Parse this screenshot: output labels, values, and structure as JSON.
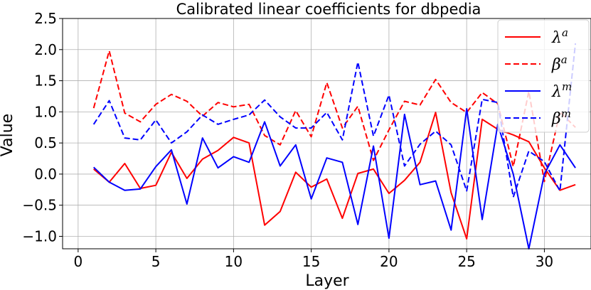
{
  "chart_data": {
    "type": "line",
    "title": "Calibrated linear coefficients for dbpedia",
    "xlabel": "Layer",
    "ylabel": "Value",
    "xlim": [
      -1,
      33
    ],
    "ylim": [
      -1.2,
      2.5
    ],
    "xticks": [
      "0",
      "5",
      "10",
      "15",
      "20",
      "25",
      "30"
    ],
    "yticks": [
      "−1.0",
      "−0.5",
      "0.0",
      "0.5",
      "1.0",
      "1.5",
      "2.0",
      "2.5"
    ],
    "grid": true,
    "legend_position": "top-right",
    "x": [
      1,
      2,
      3,
      4,
      5,
      6,
      7,
      8,
      9,
      10,
      11,
      12,
      13,
      14,
      15,
      16,
      17,
      18,
      19,
      20,
      21,
      22,
      23,
      24,
      25,
      26,
      27,
      28,
      29,
      30,
      31,
      32
    ],
    "series": [
      {
        "name": "λ^a",
        "base": "λ",
        "sup": "a",
        "color": "#ff0000",
        "dash": "solid",
        "values": [
          0.08,
          -0.13,
          0.17,
          -0.23,
          -0.18,
          0.35,
          -0.07,
          0.24,
          0.38,
          0.59,
          0.5,
          -0.82,
          -0.6,
          0.03,
          -0.21,
          -0.08,
          -0.71,
          0.01,
          0.08,
          -0.31,
          -0.1,
          0.19,
          0.99,
          -0.3,
          -1.04,
          0.88,
          0.72,
          0.63,
          0.52,
          0.1,
          -0.26,
          -0.17
        ]
      },
      {
        "name": "β^a",
        "base": "β",
        "sup": "a",
        "color": "#ff0000",
        "dash": "dashed",
        "values": [
          1.06,
          1.98,
          0.98,
          0.84,
          1.12,
          1.28,
          1.17,
          0.93,
          1.15,
          1.08,
          1.12,
          0.62,
          0.47,
          1.02,
          0.6,
          1.47,
          0.74,
          1.09,
          0.22,
          0.71,
          1.17,
          1.11,
          1.52,
          1.15,
          0.99,
          1.31,
          1.13,
          0.12,
          1.33,
          -0.12,
          1.0,
          0.75
        ]
      },
      {
        "name": "λ^m",
        "base": "λ",
        "sup": "m",
        "color": "#0000ff",
        "dash": "solid",
        "values": [
          0.11,
          -0.13,
          -0.26,
          -0.24,
          0.12,
          0.39,
          -0.48,
          0.58,
          0.1,
          0.28,
          0.19,
          0.84,
          0.13,
          0.47,
          -0.4,
          0.26,
          0.19,
          -0.81,
          0.45,
          -1.03,
          0.96,
          -0.17,
          -0.11,
          -0.9,
          1.05,
          -0.73,
          0.8,
          0.0,
          -1.2,
          0.0,
          0.47,
          0.1
        ]
      },
      {
        "name": "β^m",
        "base": "β",
        "sup": "m",
        "color": "#0000ff",
        "dash": "dashed",
        "values": [
          0.8,
          1.18,
          0.58,
          0.55,
          0.87,
          0.5,
          0.68,
          0.95,
          0.8,
          0.88,
          0.95,
          1.19,
          0.92,
          0.74,
          0.74,
          0.99,
          0.55,
          1.8,
          0.61,
          1.27,
          0.13,
          0.48,
          0.69,
          0.47,
          -0.27,
          1.2,
          1.15,
          -0.37,
          0.37,
          0.2,
          -0.27,
          2.1
        ]
      }
    ]
  }
}
